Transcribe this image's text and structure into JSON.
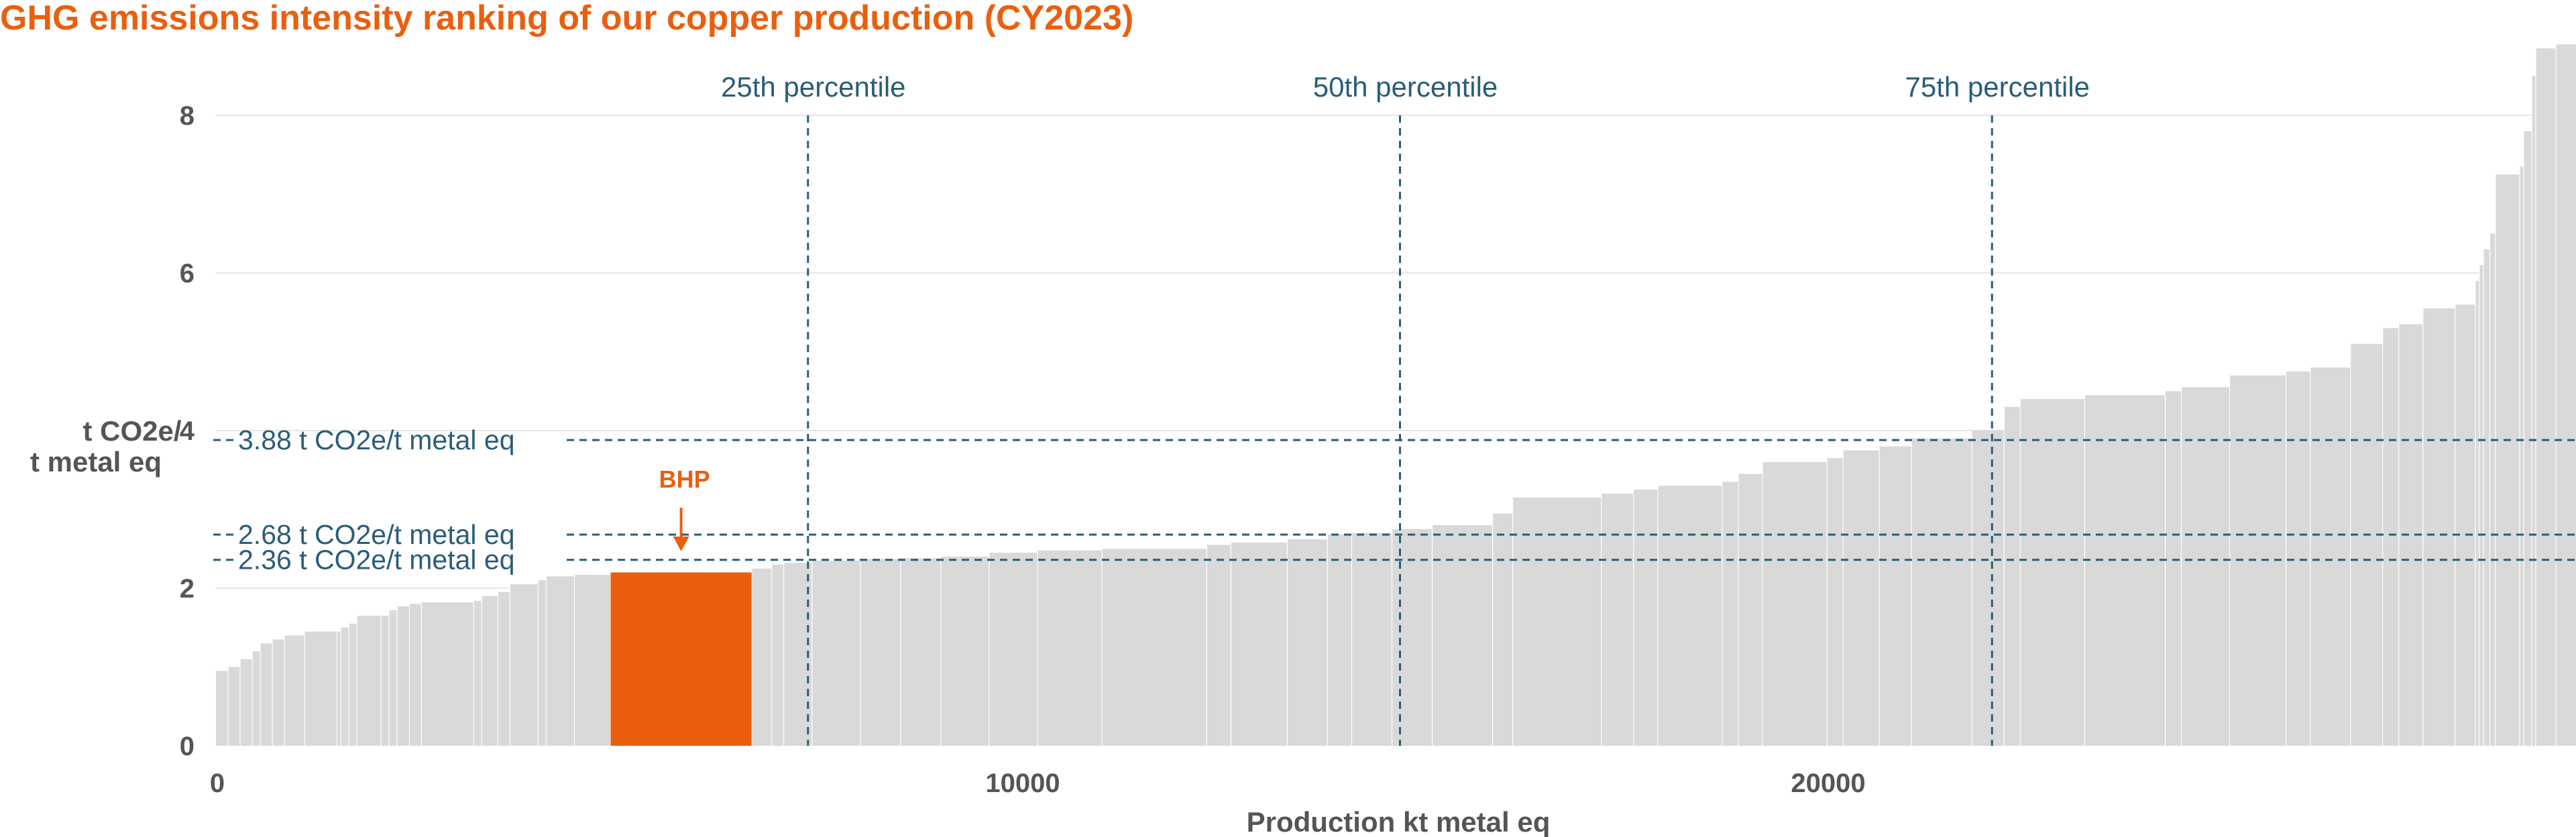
{
  "chart_data": {
    "type": "bar",
    "title": "GHG emissions intensity ranking of our copper production (CY2023)",
    "xlabel": "Production kt metal eq",
    "ylabel_line1": "t CO2e/",
    "ylabel_line2": "t metal eq",
    "xlim": [
      0,
      29300
    ],
    "ylim": [
      0,
      8.8
    ],
    "yticks": [
      0,
      2,
      4,
      6,
      8
    ],
    "ytick_labels": [
      "0",
      "2",
      "4",
      "6",
      "8"
    ],
    "xticks": [
      0,
      10000,
      20000
    ],
    "xtick_labels": [
      "0",
      "10000",
      "20000"
    ],
    "grid": "horizontal",
    "highlight": {
      "label": "BHP",
      "x_start": 4900,
      "x_end": 6650,
      "value": 2.2,
      "color": "#ea5f0f"
    },
    "bar_color": "#d9d9d9",
    "steps": [
      [
        0,
        0.95
      ],
      [
        150,
        1.0
      ],
      [
        300,
        1.1
      ],
      [
        450,
        1.2
      ],
      [
        550,
        1.3
      ],
      [
        700,
        1.35
      ],
      [
        850,
        1.4
      ],
      [
        1100,
        1.45
      ],
      [
        1500,
        1.45
      ],
      [
        1550,
        1.5
      ],
      [
        1650,
        1.55
      ],
      [
        1750,
        1.65
      ],
      [
        2050,
        1.65
      ],
      [
        2150,
        1.72
      ],
      [
        2250,
        1.77
      ],
      [
        2400,
        1.8
      ],
      [
        2550,
        1.82
      ],
      [
        3200,
        1.84
      ],
      [
        3300,
        1.9
      ],
      [
        3500,
        1.95
      ],
      [
        3650,
        2.05
      ],
      [
        4000,
        2.1
      ],
      [
        4100,
        2.15
      ],
      [
        4450,
        2.17
      ],
      [
        4900,
        2.2
      ],
      [
        6650,
        2.25
      ],
      [
        6900,
        2.3
      ],
      [
        7050,
        2.32
      ],
      [
        7400,
        2.35
      ],
      [
        8000,
        2.37
      ],
      [
        8500,
        2.38
      ],
      [
        9000,
        2.4
      ],
      [
        9600,
        2.45
      ],
      [
        10200,
        2.48
      ],
      [
        11000,
        2.5
      ],
      [
        12300,
        2.55
      ],
      [
        12600,
        2.58
      ],
      [
        13300,
        2.62
      ],
      [
        13800,
        2.68
      ],
      [
        14100,
        2.7
      ],
      [
        14600,
        2.75
      ],
      [
        15100,
        2.8
      ],
      [
        15850,
        2.95
      ],
      [
        16100,
        3.15
      ],
      [
        17200,
        3.2
      ],
      [
        17600,
        3.25
      ],
      [
        17900,
        3.3
      ],
      [
        18700,
        3.35
      ],
      [
        18900,
        3.45
      ],
      [
        19200,
        3.6
      ],
      [
        20000,
        3.65
      ],
      [
        20200,
        3.75
      ],
      [
        20650,
        3.8
      ],
      [
        21050,
        3.9
      ],
      [
        21800,
        4.0
      ],
      [
        22200,
        4.3
      ],
      [
        22400,
        4.4
      ],
      [
        23200,
        4.45
      ],
      [
        24200,
        4.5
      ],
      [
        24400,
        4.55
      ],
      [
        25000,
        4.7
      ],
      [
        25700,
        4.75
      ],
      [
        26000,
        4.8
      ],
      [
        26500,
        5.1
      ],
      [
        26900,
        5.3
      ],
      [
        27100,
        5.35
      ],
      [
        27400,
        5.55
      ],
      [
        27800,
        5.6
      ],
      [
        28050,
        5.9
      ],
      [
        28100,
        6.1
      ],
      [
        28150,
        6.3
      ],
      [
        28230,
        6.5
      ],
      [
        28300,
        7.25
      ],
      [
        28600,
        7.35
      ],
      [
        28650,
        7.8
      ],
      [
        28750,
        8.5
      ],
      [
        28800,
        8.85
      ],
      [
        29050,
        8.9
      ],
      [
        29300,
        8.9
      ]
    ],
    "percentiles": [
      {
        "label": "25th percentile",
        "x": 7350
      },
      {
        "label": "50th percentile",
        "x": 14700
      },
      {
        "label": "75th percentile",
        "x": 22050
      }
    ],
    "reference_lines": [
      {
        "label": "3.88 t CO2e/t metal eq",
        "value": 3.88
      },
      {
        "label": "2.68 t CO2e/t metal eq",
        "value": 2.68
      },
      {
        "label": "2.36 t CO2e/t metal eq",
        "value": 2.36
      }
    ],
    "ref_color": "#2a5d78"
  }
}
